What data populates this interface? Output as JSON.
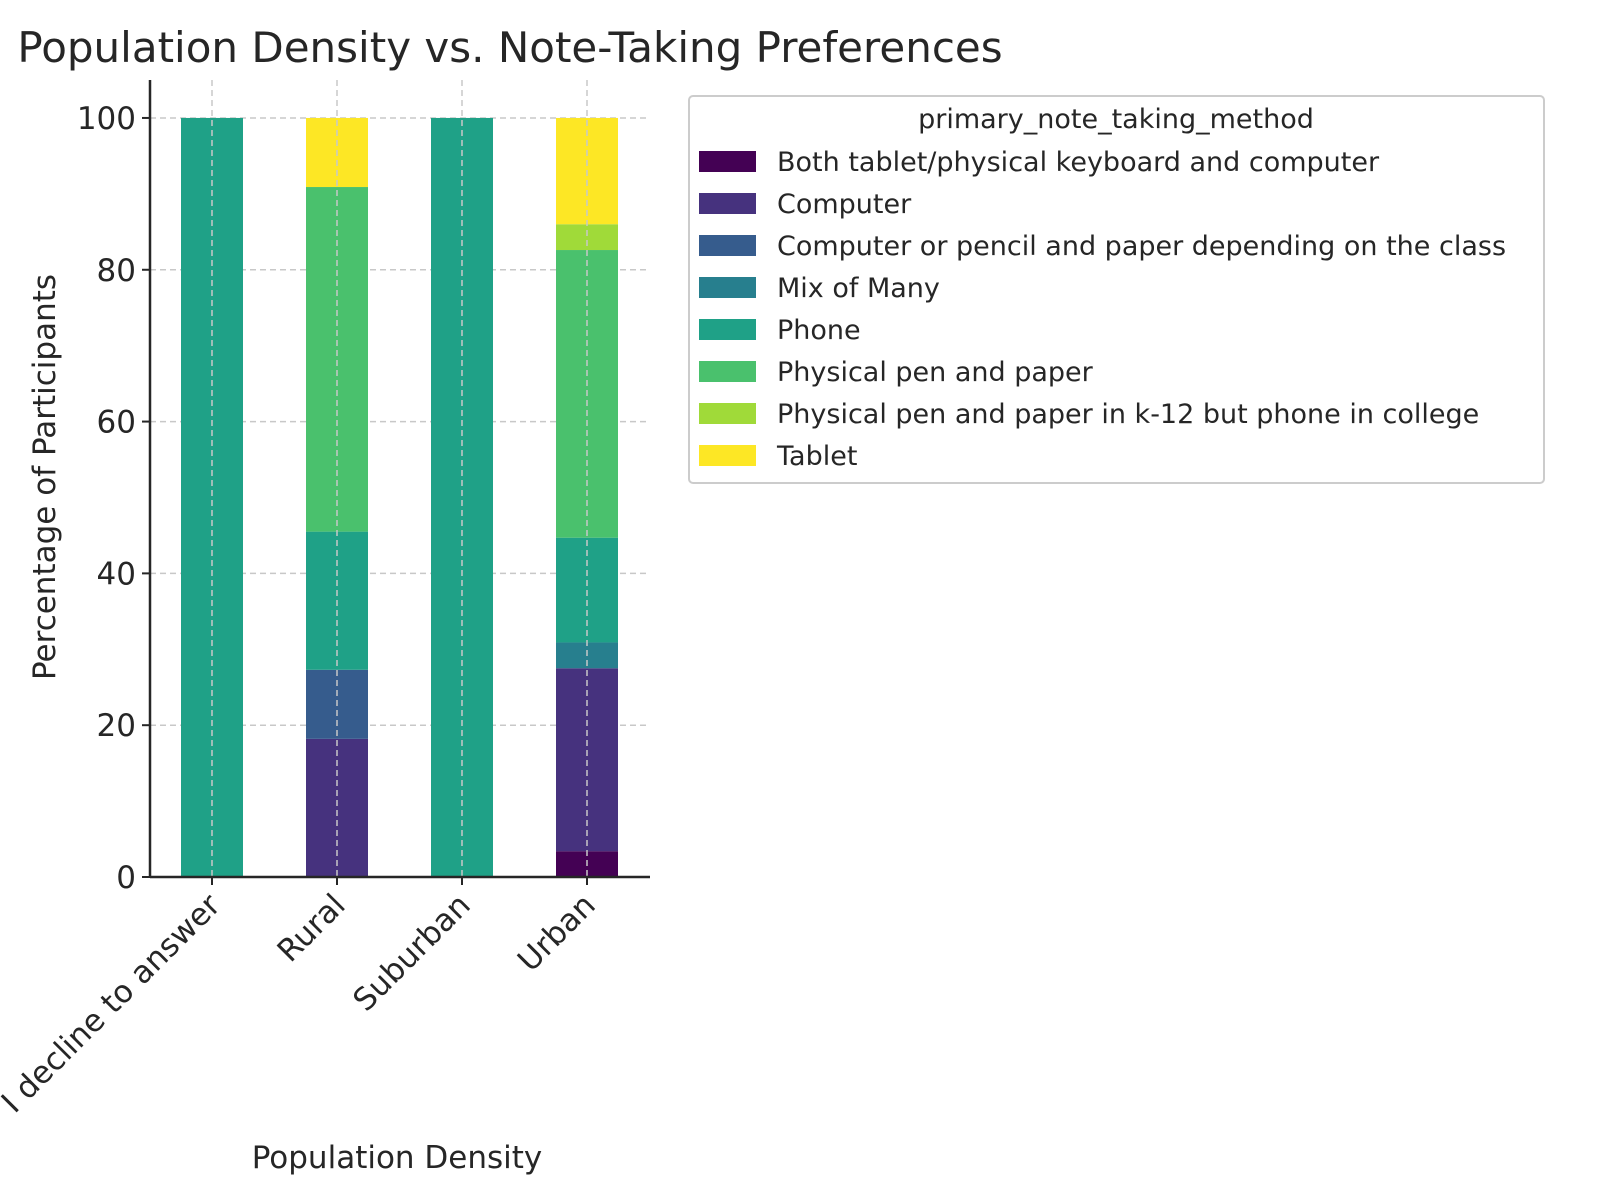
{
  "chart_data": {
    "type": "bar",
    "stacked": true,
    "title": "Population Density vs. Note-Taking Preferences",
    "xlabel": "Population Density",
    "ylabel": "Percentage of Participants",
    "ylim": [
      0,
      105
    ],
    "yticks": [
      0,
      20,
      40,
      60,
      80,
      100
    ],
    "grid": true,
    "legend_title": "primary_note_taking_method",
    "legend_position": "outside-top-right",
    "categories": [
      "I decline to answer",
      "Rural",
      "Suburban",
      "Urban"
    ],
    "series": [
      {
        "name": "Both tablet/physical keyboard and computer",
        "color": "#440154",
        "values": [
          0,
          0,
          0,
          3.4
        ]
      },
      {
        "name": "Computer",
        "color": "#46327e",
        "values": [
          0,
          18.2,
          0,
          24.1
        ]
      },
      {
        "name": "Computer or pencil and paper depending on the class",
        "color": "#365c8d",
        "values": [
          0,
          9.1,
          0,
          0
        ]
      },
      {
        "name": "Mix of Many",
        "color": "#277f8e",
        "values": [
          0,
          0,
          0,
          3.4
        ]
      },
      {
        "name": "Phone",
        "color": "#1fa187",
        "values": [
          100,
          18.2,
          100,
          13.8
        ]
      },
      {
        "name": "Physical pen and paper",
        "color": "#4ac16d",
        "values": [
          0,
          45.4,
          0,
          37.9
        ]
      },
      {
        "name": "Physical pen and paper in k-12 but phone in college",
        "color": "#a0da39",
        "values": [
          0,
          0,
          0,
          3.4
        ]
      },
      {
        "name": "Tablet",
        "color": "#fde725",
        "values": [
          0,
          9.1,
          0,
          14.0
        ]
      }
    ]
  }
}
